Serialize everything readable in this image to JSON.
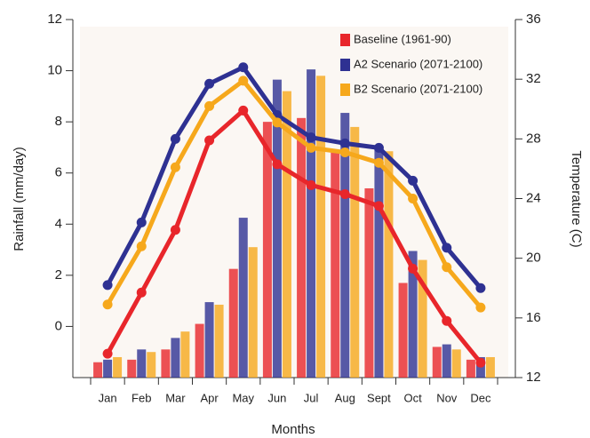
{
  "chart_data": {
    "type": "bar-line",
    "y_label": "Rainfall (mm/day)",
    "y2_label": "Temperature (C)",
    "x_label": "Months",
    "categories": [
      "Jan",
      "Feb",
      "Mar",
      "Apr",
      "May",
      "Jun",
      "Jul",
      "Aug",
      "Sept",
      "Oct",
      "Nov",
      "Dec"
    ],
    "series": [
      {
        "name": "Baseline (1961-90)",
        "color": "#e8262b",
        "bar_values": [
          -1.4,
          -1.3,
          -0.9,
          0.1,
          2.25,
          8.0,
          8.15,
          6.8,
          5.4,
          1.7,
          -0.8,
          -1.3
        ],
        "line_values": [
          13.6,
          17.7,
          21.9,
          27.9,
          29.9,
          26.3,
          24.9,
          24.3,
          23.5,
          19.3,
          15.8,
          13.0
        ]
      },
      {
        "name": "A2 Scenario (2071-2100)",
        "color": "#2e3192",
        "bar_values": [
          -1.3,
          -0.9,
          -0.45,
          0.95,
          4.25,
          9.65,
          10.05,
          8.35,
          7.0,
          2.95,
          -0.7,
          -1.2
        ],
        "line_values": [
          18.2,
          22.4,
          28.0,
          31.7,
          32.8,
          29.6,
          28.1,
          27.7,
          27.4,
          25.2,
          20.7,
          18.0
        ]
      },
      {
        "name": "B2 Scenario (2071-2100)",
        "color": "#f6a81c",
        "bar_values": [
          -1.2,
          -1.0,
          -0.2,
          0.85,
          3.1,
          9.2,
          9.8,
          7.8,
          6.85,
          2.6,
          -0.9,
          -1.2
        ],
        "line_values": [
          16.9,
          20.8,
          26.1,
          30.2,
          31.9,
          29.1,
          27.4,
          27.1,
          26.4,
          24.0,
          19.4,
          16.7
        ]
      }
    ],
    "ylim": [
      -2,
      12
    ],
    "yticks": [
      0,
      2,
      4,
      6,
      8,
      10,
      12
    ],
    "y2lim": [
      12,
      36
    ],
    "y2ticks": [
      12,
      16,
      20,
      24,
      28,
      32,
      36
    ],
    "legend": "top-right"
  }
}
